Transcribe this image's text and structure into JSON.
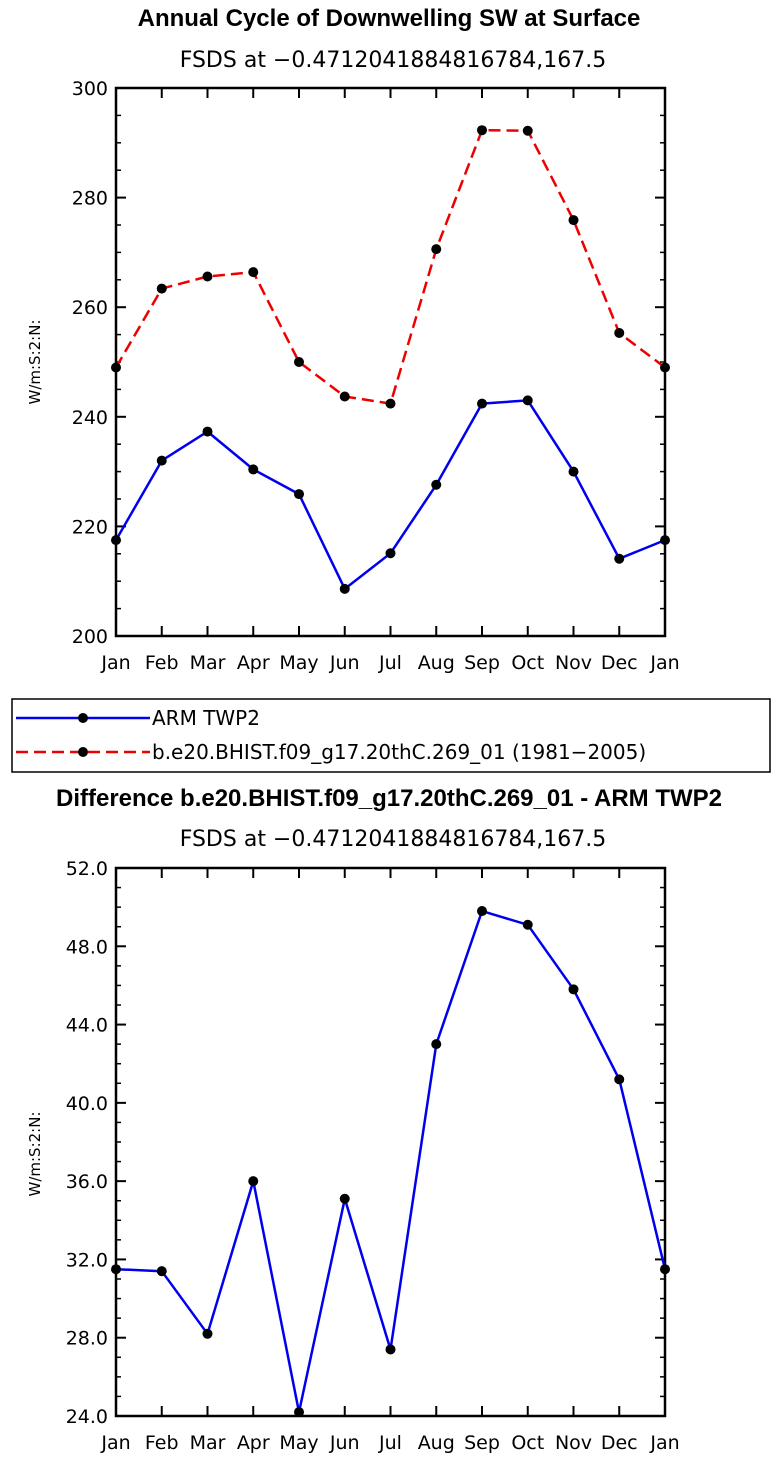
{
  "chart_data": [
    {
      "type": "line",
      "title": "Annual Cycle of Downwelling SW at Surface",
      "subtitle": "FSDS at −0.4712041884816784,167.5",
      "ylabel": "W/m:S:2:N:",
      "xlabel": "",
      "categories": [
        "Jan",
        "Feb",
        "Mar",
        "Apr",
        "May",
        "Jun",
        "Jul",
        "Aug",
        "Sep",
        "Oct",
        "Nov",
        "Dec",
        "Jan"
      ],
      "ylim": [
        200,
        300
      ],
      "yticks": [
        "200",
        "220",
        "240",
        "260",
        "280",
        "300"
      ],
      "series": [
        {
          "name": "ARM TWP2",
          "color": "#0000ee",
          "dash": "solid",
          "values": [
            217.5,
            232.0,
            237.3,
            230.4,
            225.9,
            208.6,
            215.1,
            227.6,
            242.4,
            243.0,
            230.0,
            214.1,
            217.5
          ]
        },
        {
          "name": "b.e20.BHIST.f09_g17.20thC.269_01 (1981−2005)",
          "color": "#ee0000",
          "dash": "dashed",
          "values": [
            249.0,
            263.4,
            265.6,
            266.4,
            250.0,
            243.7,
            242.4,
            270.6,
            292.3,
            292.2,
            275.9,
            255.3,
            249.0
          ]
        }
      ]
    },
    {
      "type": "line",
      "title": "Difference b.e20.BHIST.f09_g17.20thC.269_01 - ARM TWP2",
      "subtitle": "FSDS at −0.4712041884816784,167.5",
      "ylabel": "W/m:S:2:N:",
      "xlabel": "",
      "categories": [
        "Jan",
        "Feb",
        "Mar",
        "Apr",
        "May",
        "Jun",
        "Jul",
        "Aug",
        "Sep",
        "Oct",
        "Nov",
        "Dec",
        "Jan"
      ],
      "ylim": [
        24,
        52
      ],
      "yticks": [
        "24.0",
        "28.0",
        "32.0",
        "36.0",
        "40.0",
        "44.0",
        "48.0",
        "52.0"
      ],
      "series": [
        {
          "name": "Difference",
          "color": "#0000ee",
          "dash": "solid",
          "values": [
            31.5,
            31.4,
            28.2,
            36.0,
            24.2,
            35.1,
            27.4,
            43.0,
            49.8,
            49.1,
            45.8,
            41.2,
            31.5
          ]
        }
      ]
    }
  ],
  "legend": {
    "entries": [
      {
        "label": "ARM TWP2",
        "color": "#0000ee",
        "dash": "solid"
      },
      {
        "label": "b.e20.BHIST.f09_g17.20thC.269_01 (1981−2005)",
        "color": "#ee0000",
        "dash": "dashed"
      }
    ]
  }
}
